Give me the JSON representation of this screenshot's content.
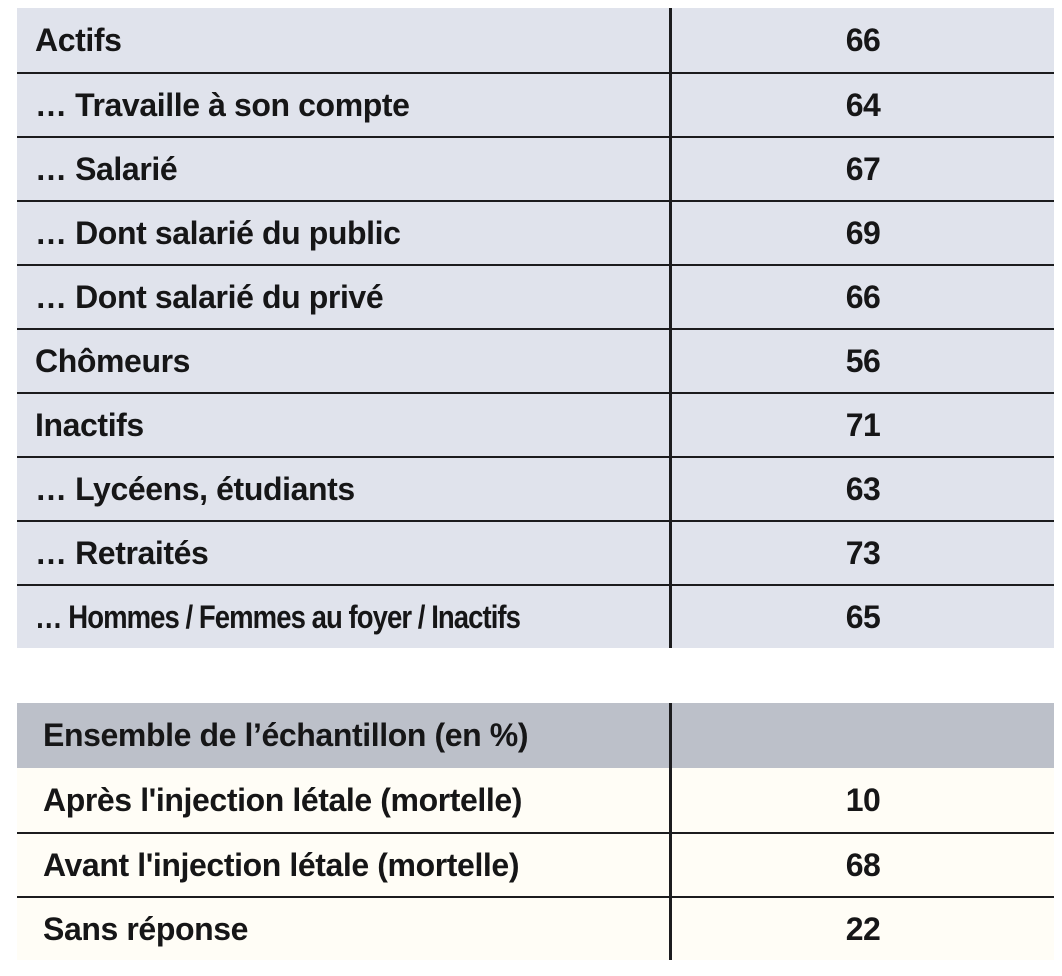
{
  "document": {
    "kind": "survey-results-table",
    "language": "fr"
  },
  "colors": {
    "row_background": "#e0e3ec",
    "header_background": "#bcc0c9",
    "body_background": "#fffdf6",
    "line": "#1c1c1e",
    "text": "#161617",
    "page_background": "#ffffff"
  },
  "table1": {
    "rows": [
      {
        "label": "Actifs",
        "value": "66"
      },
      {
        "label": "… Travaille à son compte",
        "value": "64"
      },
      {
        "label": "… Salarié",
        "value": "67"
      },
      {
        "label": "… Dont salarié du public",
        "value": "69"
      },
      {
        "label": "… Dont salarié du privé",
        "value": "66"
      },
      {
        "label": "Chômeurs",
        "value": "56"
      },
      {
        "label": "Inactifs",
        "value": "71"
      },
      {
        "label": "… Lycéens, étudiants",
        "value": "63"
      },
      {
        "label": "… Retraités",
        "value": "73"
      },
      {
        "label": "… Hommes / Femmes au foyer / Inactifs",
        "value": "65"
      }
    ]
  },
  "table2": {
    "header": "Ensemble de l’échantillon (en %)",
    "rows": [
      {
        "label": "Après l'injection létale (mortelle)",
        "value": "10"
      },
      {
        "label": "Avant l'injection létale (mortelle)",
        "value": "68"
      },
      {
        "label": "Sans réponse",
        "value": "22"
      }
    ]
  }
}
